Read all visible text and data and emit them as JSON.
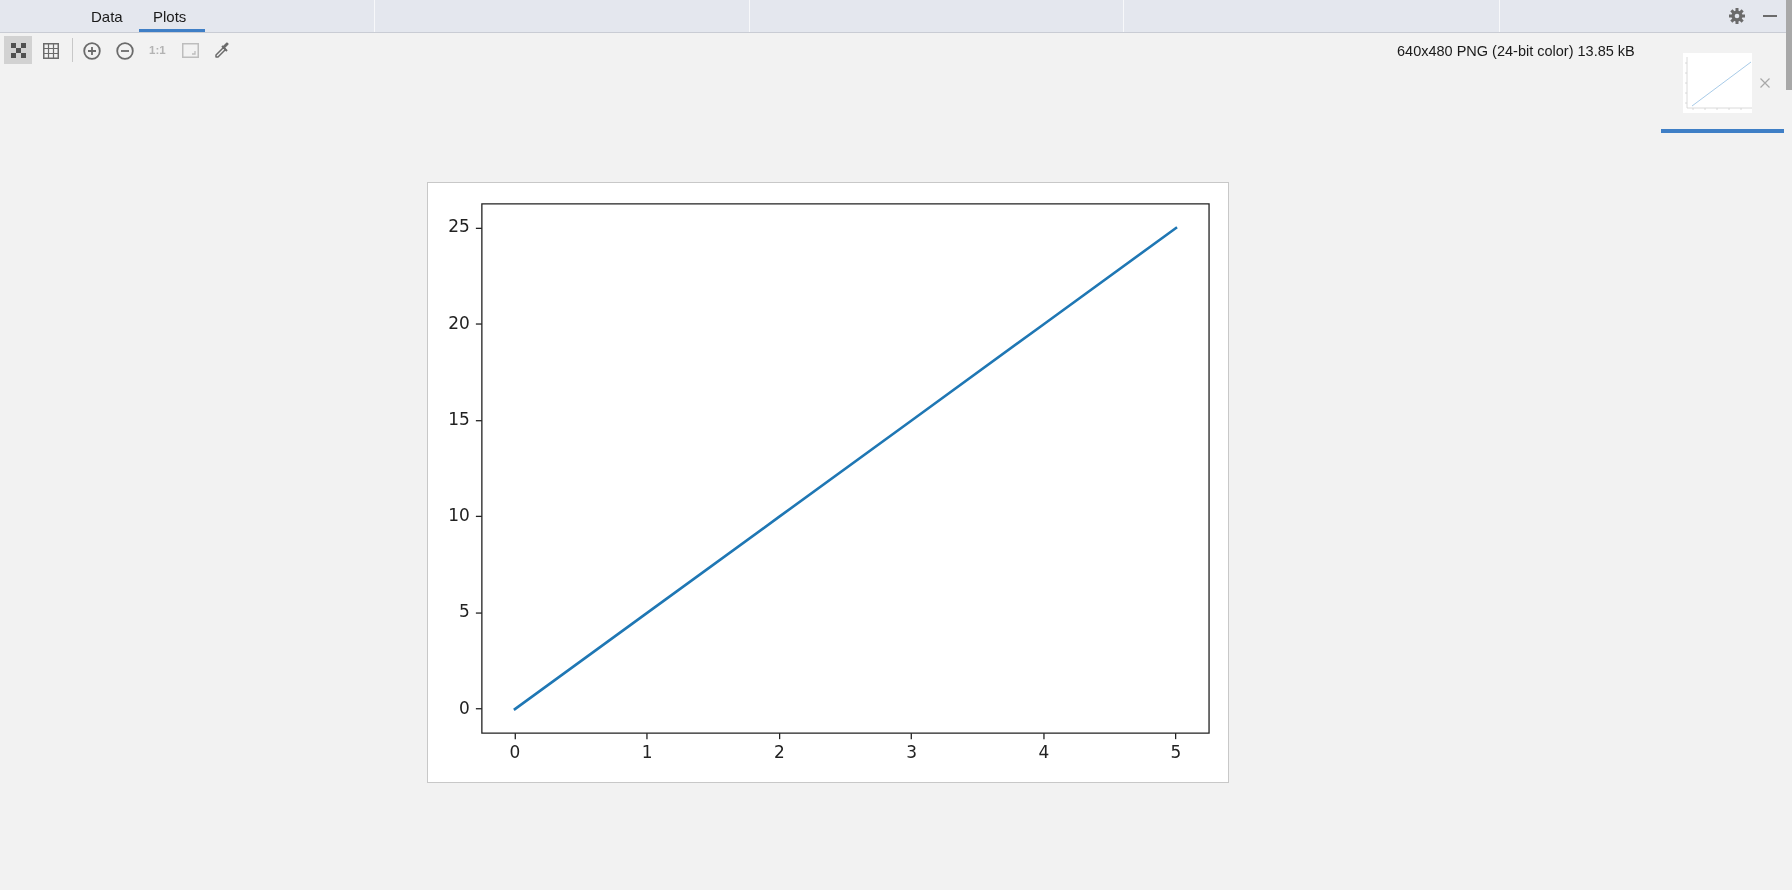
{
  "chart_data": {
    "type": "line",
    "x": [
      0,
      1,
      2,
      3,
      4,
      5
    ],
    "series": [
      {
        "color": "#1f77b4",
        "values": [
          0,
          5,
          10,
          15,
          20,
          25
        ]
      }
    ],
    "xlim": [
      -0.25,
      5.25
    ],
    "ylim": [
      -1.25,
      26.25
    ],
    "xticks": [
      0,
      1,
      2,
      3,
      4,
      5
    ],
    "yticks": [
      0,
      5,
      10,
      15,
      20,
      25
    ],
    "annotations": [
      "Data",
      "Plots",
      "1:1",
      "640x480 PNG (24-bit color) 13.85 kB"
    ]
  }
}
